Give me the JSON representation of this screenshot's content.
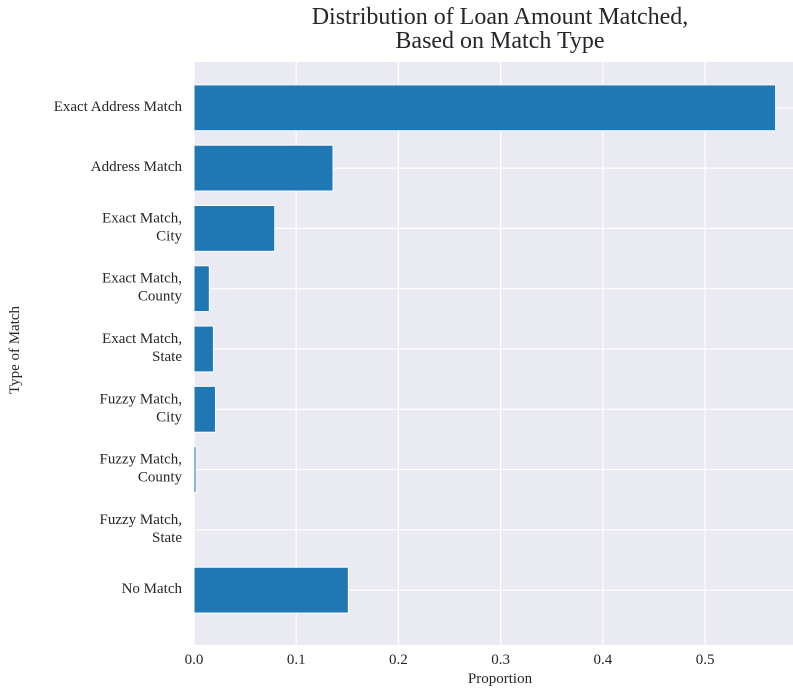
{
  "chart_data": {
    "type": "bar",
    "orientation": "horizontal",
    "title": "Distribution of Loan Amount Matched,\nBased on Match Type",
    "x_label": "Proportion",
    "y_label": "Type of Match",
    "categories": [
      "Exact Address Match",
      "Address Match",
      "Exact Match,\nCity",
      "Exact Match,\nCounty",
      "Exact Match,\nState",
      "Fuzzy Match,\nCity",
      "Fuzzy Match,\nCounty",
      "Fuzzy Match,\nState",
      "No Match"
    ],
    "values": [
      0.569,
      0.136,
      0.079,
      0.015,
      0.019,
      0.021,
      0.002,
      0.0003,
      0.151
    ],
    "color": "#1f77b4",
    "xlim": [
      0,
      0.586
    ],
    "xticks": [
      {
        "value": 0,
        "label": "0.0"
      },
      0.1,
      0.2,
      0.3,
      0.4,
      0.5
    ],
    "grid": true
  }
}
